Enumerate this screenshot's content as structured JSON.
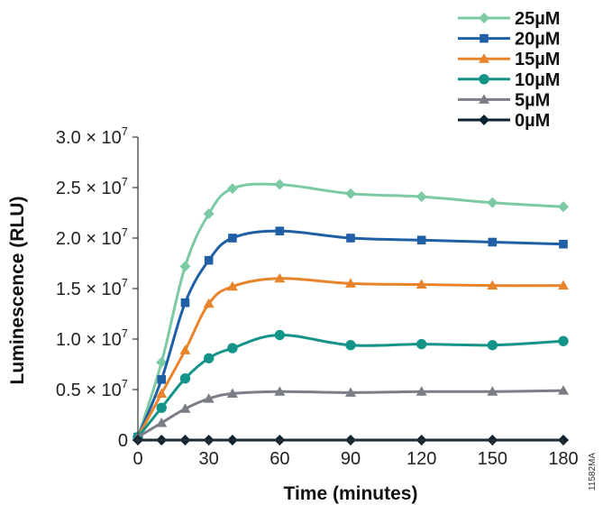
{
  "chart_data": {
    "type": "line",
    "xlabel": "Time (minutes)",
    "ylabel": "Luminescence (RLU)",
    "xlim": [
      0,
      180
    ],
    "ylim": [
      0,
      3.0
    ],
    "x_ticks": [
      0,
      30,
      60,
      90,
      120,
      150,
      180
    ],
    "x_tick_labels": [
      "0",
      "30",
      "60",
      "90",
      "120",
      "150",
      "180"
    ],
    "y_ticks": [
      0,
      0.5,
      1.0,
      1.5,
      2.0,
      2.5,
      3.0
    ],
    "y_tick_labels": [
      {
        "mantissa": "0",
        "exp": ""
      },
      {
        "mantissa": "0.5 × 10",
        "exp": "7"
      },
      {
        "mantissa": "1.0 × 10",
        "exp": "7"
      },
      {
        "mantissa": "1.5 × 10",
        "exp": "7"
      },
      {
        "mantissa": "2.0 × 10",
        "exp": "7"
      },
      {
        "mantissa": "2.5 × 10",
        "exp": "7"
      },
      {
        "mantissa": "3.0 × 10",
        "exp": "7"
      }
    ],
    "y_unit_multiplier": "× 10^7",
    "grid": false,
    "legend_position": "top-right",
    "x": [
      0,
      10,
      20,
      30,
      40,
      60,
      90,
      120,
      150,
      180
    ],
    "series": [
      {
        "name": "25µM",
        "color": "#7ccaa3",
        "marker": "diamond",
        "values": [
          0.03,
          0.77,
          1.72,
          2.24,
          2.49,
          2.53,
          2.44,
          2.41,
          2.35,
          2.31
        ]
      },
      {
        "name": "20µM",
        "color": "#1f5fa6",
        "marker": "square",
        "values": [
          0.03,
          0.6,
          1.36,
          1.78,
          2.0,
          2.07,
          2.0,
          1.98,
          1.96,
          1.94
        ]
      },
      {
        "name": "15µM",
        "color": "#e8852c",
        "marker": "triangle",
        "values": [
          0.03,
          0.46,
          0.89,
          1.35,
          1.52,
          1.6,
          1.55,
          1.54,
          1.53,
          1.53
        ]
      },
      {
        "name": "10µM",
        "color": "#149488",
        "marker": "circle",
        "values": [
          0.03,
          0.32,
          0.61,
          0.81,
          0.91,
          1.04,
          0.94,
          0.95,
          0.94,
          0.98
        ]
      },
      {
        "name": "5µM",
        "color": "#7b7e87",
        "marker": "triangle",
        "values": [
          0.03,
          0.17,
          0.31,
          0.41,
          0.46,
          0.48,
          0.47,
          0.48,
          0.48,
          0.49
        ]
      },
      {
        "name": "0µM",
        "color": "#0d2230",
        "marker": "diamond",
        "values": [
          0.0,
          0.0,
          0.0,
          0.0,
          0.0,
          0.0,
          0.0,
          0.0,
          0.0,
          0.0
        ]
      }
    ],
    "code": "11582MA"
  }
}
